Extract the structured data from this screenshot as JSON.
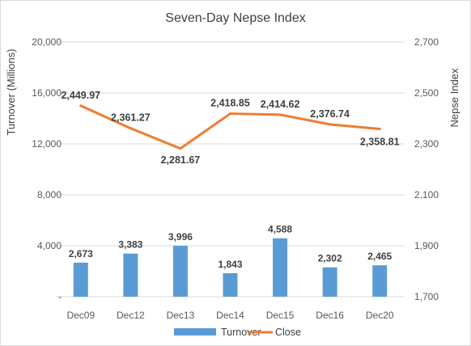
{
  "chart_data": {
    "type": "bar+line",
    "title": "Seven-Day Nepse Index",
    "categories": [
      "Dec09",
      "Dec12",
      "Dec13",
      "Dec14",
      "Dec15",
      "Dec16",
      "Dec20"
    ],
    "series": [
      {
        "name": "Turnover",
        "type": "bar",
        "axis": "left",
        "color": "#5b9bd5",
        "values": [
          2673,
          3383,
          3996,
          1843,
          4588,
          2302,
          2465
        ],
        "labels": [
          "2,673",
          "3,383",
          "3,996",
          "1,843",
          "4,588",
          "2,302",
          "2,465"
        ]
      },
      {
        "name": "Close",
        "type": "line",
        "axis": "right",
        "color": "#ed7d31",
        "values": [
          2449.97,
          2361.27,
          2281.67,
          2418.85,
          2414.62,
          2376.74,
          2358.81
        ],
        "labels": [
          "2,449.97",
          "2,361.27",
          "2,281.67",
          "2,418.85",
          "2,414.62",
          "2,376.74",
          "2,358.81"
        ]
      }
    ],
    "ylabel": "Turnover (Millions)",
    "y2label": "Nepse Index",
    "ylim": [
      0,
      20000
    ],
    "y2lim": [
      1700,
      2700
    ],
    "y_ticks": [
      "-",
      "4,000",
      "8,000",
      "12,000",
      "16,000",
      "20,000"
    ],
    "y2_ticks": [
      "1,700",
      "1,900",
      "2,100",
      "2,300",
      "2,500",
      "2,700"
    ],
    "grid": "horizontal",
    "legend": "bottom"
  }
}
